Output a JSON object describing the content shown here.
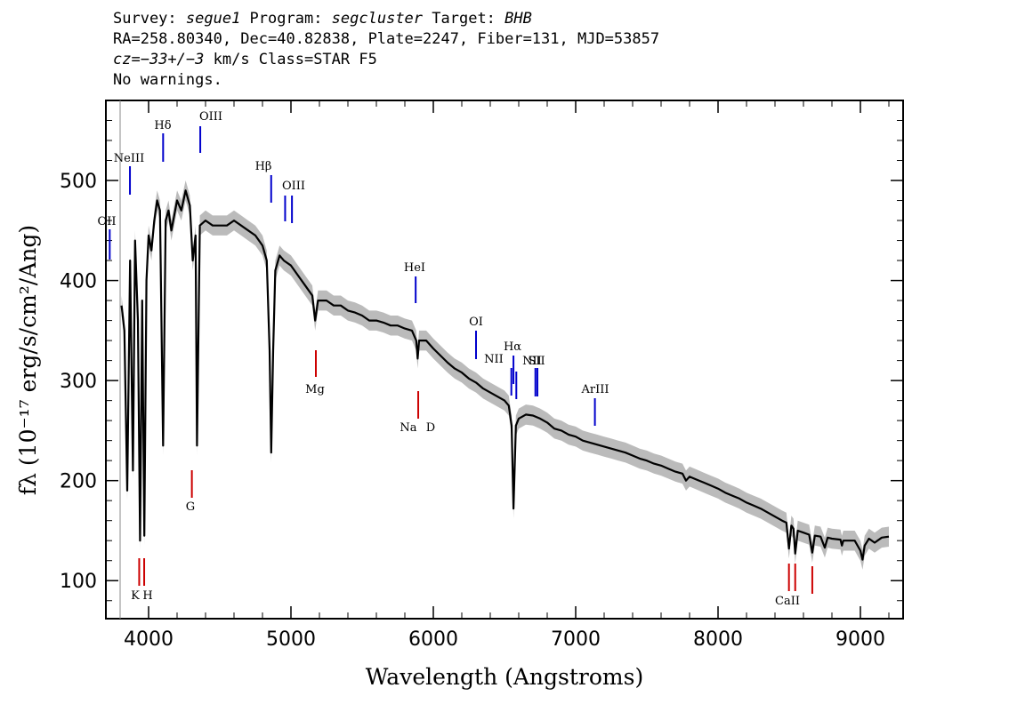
{
  "header": {
    "survey_label": "Survey: ",
    "survey": "segue1",
    "program_label": " Program: ",
    "program": "segcluster",
    "target_label": " Target: ",
    "target": "BHB",
    "line2": "RA=258.80340, Dec=40.82838, Plate=2247, Fiber=131, MJD=53857",
    "cz_label": "cz",
    "cz_value": "=−33+/−3",
    "cz_rest": " km/s Class=STAR F5",
    "line4": "No warnings."
  },
  "chart_data": {
    "type": "line",
    "xlabel": "Wavelength (Angstroms)",
    "ylabel": "fλ (10⁻¹⁷ erg/s/cm²/Ang)",
    "xlim": [
      3700,
      9300
    ],
    "ylim": [
      62,
      580
    ],
    "x_ticks": [
      4000,
      5000,
      6000,
      7000,
      8000,
      9000
    ],
    "y_ticks": [
      100,
      200,
      300,
      400,
      500
    ],
    "series": [
      {
        "color": "#000000",
        "points": [
          [
            3810,
            375
          ],
          [
            3830,
            350
          ],
          [
            3850,
            190
          ],
          [
            3870,
            420
          ],
          [
            3890,
            210
          ],
          [
            3905,
            440
          ],
          [
            3925,
            360
          ],
          [
            3940,
            140
          ],
          [
            3955,
            380
          ],
          [
            3970,
            145
          ],
          [
            3985,
            400
          ],
          [
            4000,
            445
          ],
          [
            4020,
            430
          ],
          [
            4040,
            460
          ],
          [
            4060,
            480
          ],
          [
            4080,
            470
          ],
          [
            4102,
            235
          ],
          [
            4120,
            460
          ],
          [
            4140,
            470
          ],
          [
            4160,
            450
          ],
          [
            4180,
            465
          ],
          [
            4200,
            480
          ],
          [
            4230,
            470
          ],
          [
            4260,
            490
          ],
          [
            4290,
            475
          ],
          [
            4310,
            420
          ],
          [
            4330,
            445
          ],
          [
            4340,
            235
          ],
          [
            4360,
            455
          ],
          [
            4400,
            460
          ],
          [
            4450,
            455
          ],
          [
            4500,
            455
          ],
          [
            4550,
            455
          ],
          [
            4600,
            460
          ],
          [
            4650,
            455
          ],
          [
            4700,
            450
          ],
          [
            4750,
            445
          ],
          [
            4800,
            435
          ],
          [
            4830,
            420
          ],
          [
            4850,
            330
          ],
          [
            4861,
            228
          ],
          [
            4875,
            330
          ],
          [
            4890,
            410
          ],
          [
            4920,
            425
          ],
          [
            4950,
            420
          ],
          [
            5000,
            415
          ],
          [
            5050,
            405
          ],
          [
            5100,
            395
          ],
          [
            5150,
            385
          ],
          [
            5170,
            360
          ],
          [
            5190,
            380
          ],
          [
            5250,
            380
          ],
          [
            5300,
            375
          ],
          [
            5350,
            375
          ],
          [
            5400,
            370
          ],
          [
            5450,
            368
          ],
          [
            5500,
            365
          ],
          [
            5550,
            360
          ],
          [
            5600,
            360
          ],
          [
            5650,
            358
          ],
          [
            5700,
            355
          ],
          [
            5750,
            355
          ],
          [
            5800,
            352
          ],
          [
            5850,
            350
          ],
          [
            5880,
            340
          ],
          [
            5890,
            322
          ],
          [
            5900,
            340
          ],
          [
            5950,
            340
          ],
          [
            6000,
            332
          ],
          [
            6050,
            325
          ],
          [
            6100,
            318
          ],
          [
            6150,
            312
          ],
          [
            6200,
            308
          ],
          [
            6250,
            302
          ],
          [
            6300,
            298
          ],
          [
            6350,
            292
          ],
          [
            6400,
            288
          ],
          [
            6450,
            284
          ],
          [
            6500,
            280
          ],
          [
            6530,
            275
          ],
          [
            6550,
            255
          ],
          [
            6563,
            172
          ],
          [
            6580,
            255
          ],
          [
            6600,
            262
          ],
          [
            6650,
            266
          ],
          [
            6700,
            265
          ],
          [
            6750,
            262
          ],
          [
            6800,
            258
          ],
          [
            6850,
            252
          ],
          [
            6900,
            250
          ],
          [
            6950,
            246
          ],
          [
            7000,
            244
          ],
          [
            7050,
            240
          ],
          [
            7100,
            238
          ],
          [
            7150,
            236
          ],
          [
            7200,
            234
          ],
          [
            7250,
            232
          ],
          [
            7300,
            230
          ],
          [
            7350,
            228
          ],
          [
            7400,
            225
          ],
          [
            7450,
            222
          ],
          [
            7500,
            220
          ],
          [
            7550,
            217
          ],
          [
            7600,
            215
          ],
          [
            7650,
            212
          ],
          [
            7700,
            209
          ],
          [
            7750,
            207
          ],
          [
            7775,
            200
          ],
          [
            7800,
            204
          ],
          [
            7850,
            201
          ],
          [
            7900,
            198
          ],
          [
            7950,
            195
          ],
          [
            8000,
            192
          ],
          [
            8050,
            188
          ],
          [
            8100,
            185
          ],
          [
            8150,
            182
          ],
          [
            8200,
            178
          ],
          [
            8250,
            175
          ],
          [
            8300,
            172
          ],
          [
            8350,
            168
          ],
          [
            8400,
            164
          ],
          [
            8450,
            160
          ],
          [
            8480,
            158
          ],
          [
            8498,
            132
          ],
          [
            8515,
            155
          ],
          [
            8530,
            152
          ],
          [
            8542,
            127
          ],
          [
            8560,
            150
          ],
          [
            8600,
            148
          ],
          [
            8640,
            146
          ],
          [
            8662,
            128
          ],
          [
            8680,
            145
          ],
          [
            8720,
            144
          ],
          [
            8750,
            133
          ],
          [
            8770,
            143
          ],
          [
            8800,
            142
          ],
          [
            8860,
            141
          ],
          [
            8870,
            135
          ],
          [
            8880,
            140
          ],
          [
            8920,
            140
          ],
          [
            8960,
            140
          ],
          [
            9000,
            130
          ],
          [
            9015,
            121
          ],
          [
            9030,
            135
          ],
          [
            9060,
            142
          ],
          [
            9100,
            138
          ],
          [
            9150,
            143
          ],
          [
            9200,
            144
          ]
        ]
      }
    ],
    "emission_lines": [
      {
        "label": "OII",
        "wavelength": 3727,
        "color": "#0000cc"
      },
      {
        "label": "NeIII",
        "wavelength": 3869,
        "color": "#0000cc"
      },
      {
        "label": "Hδ",
        "wavelength": 4102,
        "color": "#0000cc"
      },
      {
        "label": "OIII",
        "wavelength": 4363,
        "color": "#0000cc"
      },
      {
        "label": "Hβ",
        "wavelength": 4861,
        "color": "#0000cc"
      },
      {
        "label": "OIII",
        "wavelength": 4959,
        "color": "#0000cc"
      },
      {
        "label": "OIII",
        "wavelength": 5007,
        "color": "#0000cc"
      },
      {
        "label": "HeI",
        "wavelength": 5876,
        "color": "#0000cc"
      },
      {
        "label": "OI",
        "wavelength": 6300,
        "color": "#0000cc"
      },
      {
        "label": "NII",
        "wavelength": 6548,
        "color": "#0000cc"
      },
      {
        "label": "Hα",
        "wavelength": 6563,
        "color": "#0000cc"
      },
      {
        "label": "NII",
        "wavelength": 6583,
        "color": "#0000cc"
      },
      {
        "label": "SII",
        "wavelength": 6717,
        "color": "#0000cc"
      },
      {
        "label": "SII",
        "wavelength": 6731,
        "color": "#0000cc"
      },
      {
        "label": "ArIII",
        "wavelength": 7135,
        "color": "#0000cc"
      }
    ],
    "absorption_lines": [
      {
        "label": "K",
        "wavelength": 3934,
        "color": "#cc0000"
      },
      {
        "label": "H",
        "wavelength": 3969,
        "color": "#cc0000"
      },
      {
        "label": "G",
        "wavelength": 4304,
        "color": "#cc0000"
      },
      {
        "label": "Mg",
        "wavelength": 5175,
        "color": "#cc0000"
      },
      {
        "label": "Na",
        "wavelength": 5894,
        "color": "#cc0000"
      },
      {
        "label": "D",
        "wavelength": 5894,
        "color": "#cc0000"
      },
      {
        "label": "CaII",
        "wavelength": 8498,
        "color": "#cc0000"
      },
      {
        "label": "CaII",
        "wavelength": 8542,
        "color": "#cc0000"
      },
      {
        "label": "CaII",
        "wavelength": 8662,
        "color": "#cc0000"
      }
    ],
    "error_band_color": "#bbbbbb"
  }
}
